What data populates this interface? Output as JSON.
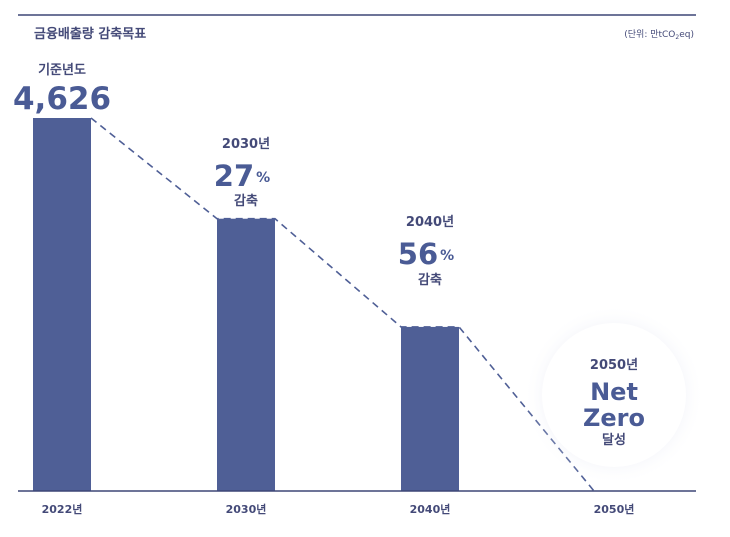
{
  "chart_data": {
    "type": "bar",
    "title": "금융배출량 감축목표",
    "unit_label_prefix": "(단위: 만tCO",
    "unit_label_sub": "2",
    "unit_label_suffix": "eq)",
    "categories": [
      "2022년",
      "2030년",
      "2040년",
      "2050년"
    ],
    "values": [
      4626,
      3377,
      2035,
      0
    ],
    "ylim": [
      0,
      4626
    ],
    "annotations": [
      {
        "line1": "기준년도",
        "big": "4,626",
        "pct": "",
        "line3": ""
      },
      {
        "line1": "2030년",
        "big": "27",
        "pct": "%",
        "line3": "감축"
      },
      {
        "line1": "2040년",
        "big": "56",
        "pct": "%",
        "line3": "감축"
      },
      {
        "line1": "2050년",
        "big1": "Net",
        "big2": "Zero",
        "line3": "달성"
      }
    ],
    "trend": "dashed"
  },
  "colors": {
    "bar": "#4f5f96",
    "text": "#444a78",
    "axis": "#3d4676",
    "dash": "#4f5f96",
    "glow": "#c8cee6"
  }
}
